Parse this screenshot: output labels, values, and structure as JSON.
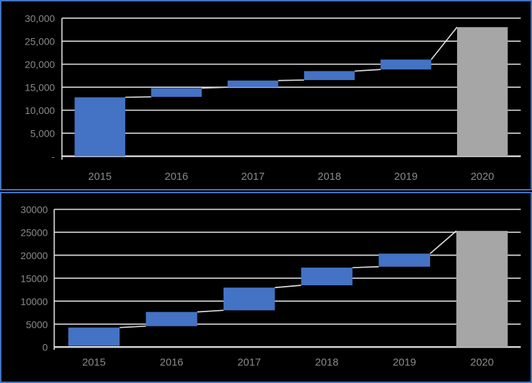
{
  "style": {
    "background": "#000000",
    "panel_border": "#4472c4",
    "bar_increase": "#4472c4",
    "bar_total": "#a6a6a6",
    "gridline": "#d9d9d9",
    "axis_line": "#dcdcdc",
    "connector": "#dcdcdc",
    "label_color": "#8a8a8a"
  },
  "chart_data": [
    {
      "type": "bar",
      "subtype": "waterfall",
      "title": "",
      "xlabel": "",
      "ylabel": "",
      "grid": true,
      "legend": "none",
      "categories": [
        "2015",
        "2016",
        "2017",
        "2018",
        "2019",
        "2020"
      ],
      "ylim": [
        0,
        30000
      ],
      "y_tick_values": [
        30000,
        25000,
        20000,
        15000,
        10000,
        5000,
        0
      ],
      "y_tick_labels": [
        "30,000",
        "25,000",
        "20,000",
        "15,000",
        "10,000",
        "5,000",
        "-"
      ],
      "bars": [
        {
          "category": "2015",
          "start": 0,
          "end": 12800,
          "kind": "increase"
        },
        {
          "category": "2016",
          "start": 12900,
          "end": 14800,
          "kind": "increase"
        },
        {
          "category": "2017",
          "start": 15000,
          "end": 16450,
          "kind": "increase"
        },
        {
          "category": "2018",
          "start": 16550,
          "end": 18500,
          "kind": "increase"
        },
        {
          "category": "2019",
          "start": 18850,
          "end": 21000,
          "kind": "increase"
        },
        {
          "category": "2020",
          "start": 0,
          "end": 28050,
          "kind": "total"
        }
      ],
      "connectors": "from top of each bar to start of next; diagonal line from 2019 top (21,000) up to 2020 total top (28,050)"
    },
    {
      "type": "bar",
      "subtype": "waterfall",
      "title": "",
      "xlabel": "",
      "ylabel": "",
      "grid": true,
      "legend": "none",
      "categories": [
        "2015",
        "2016",
        "2017",
        "2018",
        "2019",
        "2020"
      ],
      "ylim": [
        0,
        30000
      ],
      "y_tick_values": [
        30000,
        25000,
        20000,
        15000,
        10000,
        5000,
        0
      ],
      "y_tick_labels": [
        "30000",
        "25000",
        "20000",
        "15000",
        "10000",
        "5000",
        "0"
      ],
      "bars": [
        {
          "category": "2015",
          "start": 250,
          "end": 4250,
          "kind": "increase"
        },
        {
          "category": "2016",
          "start": 4550,
          "end": 7650,
          "kind": "increase"
        },
        {
          "category": "2017",
          "start": 8000,
          "end": 12950,
          "kind": "increase"
        },
        {
          "category": "2018",
          "start": 13450,
          "end": 17300,
          "kind": "increase"
        },
        {
          "category": "2019",
          "start": 17500,
          "end": 20350,
          "kind": "increase"
        },
        {
          "category": "2020",
          "start": 0,
          "end": 25300,
          "kind": "total"
        }
      ],
      "connectors": "from top of each bar to start of next; diagonal line from 2019 top (20,350) up to 2020 total top (25,300)"
    }
  ]
}
